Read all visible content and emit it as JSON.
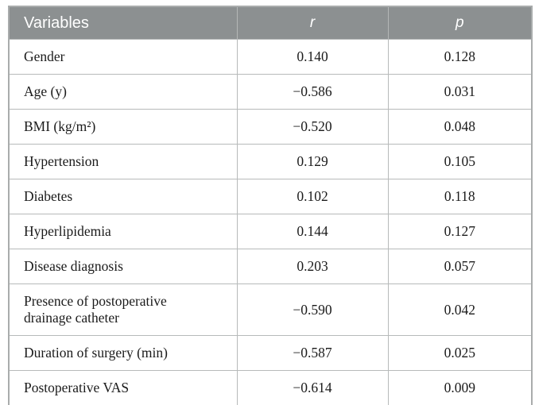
{
  "colors": {
    "header_bg": "#8c9091",
    "header_text": "#ffffff",
    "border": "#b7baba",
    "outer_border": "#a9acac",
    "body_text": "#1b1b1b"
  },
  "table": {
    "columns": [
      {
        "label": "Variables"
      },
      {
        "label": "r"
      },
      {
        "label": "p"
      }
    ],
    "rows": [
      {
        "variable": "Gender",
        "r": "0.140",
        "p": "0.128"
      },
      {
        "variable": "Age (y)",
        "r": "−0.586",
        "p": "0.031"
      },
      {
        "variable": "BMI (kg/m²)",
        "r": "−0.520",
        "p": "0.048"
      },
      {
        "variable": "Hypertension",
        "r": "0.129",
        "p": "0.105"
      },
      {
        "variable": "Diabetes",
        "r": "0.102",
        "p": "0.118"
      },
      {
        "variable": "Hyperlipidemia",
        "r": "0.144",
        "p": "0.127"
      },
      {
        "variable": "Disease diagnosis",
        "r": "0.203",
        "p": "0.057"
      },
      {
        "variable": "Presence of postoperative drainage catheter",
        "r": "−0.590",
        "p": "0.042"
      },
      {
        "variable": "Duration of surgery (min)",
        "r": "−0.587",
        "p": "0.025"
      },
      {
        "variable": "Postoperative VAS",
        "r": "−0.614",
        "p": "0.009"
      }
    ]
  }
}
